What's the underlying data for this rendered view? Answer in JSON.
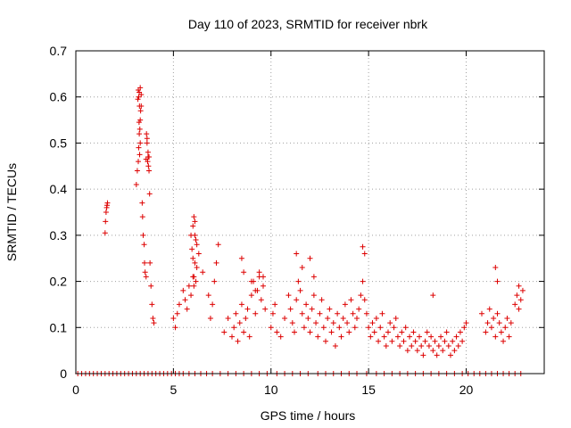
{
  "chart_data": {
    "type": "scatter",
    "title": "Day 110 of 2023, SRMTID for receiver nbrk",
    "xlabel": "GPS time / hours",
    "ylabel": "SRMTID / TECUs",
    "xlim": [
      0,
      24
    ],
    "ylim": [
      0,
      0.7
    ],
    "xticks": [
      0,
      5,
      10,
      15,
      20
    ],
    "yticks": [
      0,
      0.1,
      0.2,
      0.3,
      0.4,
      0.5,
      0.6,
      0.7
    ],
    "xtick_labels": [
      "0",
      "5",
      "10",
      "15",
      "20"
    ],
    "ytick_labels": [
      "0",
      "0.1",
      "0.2",
      "0.3",
      "0.4",
      "0.5",
      "0.6",
      "0.7"
    ],
    "grid": true,
    "marker": "+",
    "color": "#dd0000",
    "series": [
      {
        "name": "SRMTID",
        "x": [
          0.1,
          0.3,
          0.5,
          0.7,
          0.9,
          1.1,
          1.3,
          1.5,
          1.7,
          1.9,
          2.1,
          2.3,
          2.5,
          2.7,
          2.9,
          3.1,
          3.3,
          3.5,
          3.7,
          3.9,
          4.1,
          4.3,
          4.5,
          4.7,
          4.9,
          5.1,
          5.3,
          5.5,
          5.8,
          6.1,
          6.4,
          6.7,
          7.0,
          7.4,
          7.8,
          8.2,
          8.6,
          9.0,
          9.4,
          9.8,
          10.3,
          10.7,
          11.1,
          11.5,
          11.9,
          12.4,
          12.8,
          13.2,
          13.6,
          14.0,
          14.4,
          14.9,
          15.4,
          15.8,
          16.2,
          16.6,
          17.0,
          17.4,
          17.8,
          18.2,
          18.6,
          19.0,
          19.4,
          19.8,
          20.1,
          20.4,
          20.7,
          21.0,
          21.3,
          21.6,
          21.9,
          22.2,
          22.5,
          22.8,
          1.5,
          1.52,
          1.55,
          1.58,
          1.6,
          1.62,
          3.1,
          3.15,
          3.2,
          3.22,
          3.25,
          3.28,
          3.3,
          3.32,
          3.35,
          3.4,
          3.42,
          3.45,
          3.5,
          3.52,
          3.55,
          3.6,
          3.65,
          3.7,
          3.72,
          3.75,
          3.78,
          3.8,
          3.85,
          3.9,
          3.95,
          4.0,
          5.0,
          5.1,
          5.2,
          5.3,
          5.5,
          5.6,
          5.7,
          5.8,
          5.9,
          6.0,
          6.05,
          6.1,
          6.15,
          6.2,
          6.3,
          6.5,
          6.8,
          6.9,
          7.0,
          7.1,
          7.2,
          7.3,
          7.6,
          7.8,
          8.0,
          8.1,
          8.2,
          8.3,
          8.4,
          8.5,
          8.6,
          8.7,
          8.8,
          8.9,
          9.0,
          9.1,
          9.2,
          9.3,
          9.4,
          9.5,
          9.6,
          9.7,
          10.0,
          10.1,
          10.2,
          10.3,
          10.5,
          10.7,
          10.9,
          11.0,
          11.1,
          11.2,
          11.3,
          11.4,
          11.5,
          11.6,
          11.7,
          11.8,
          11.9,
          12.0,
          12.1,
          12.2,
          12.3,
          12.4,
          12.5,
          12.6,
          12.7,
          12.8,
          12.9,
          13.0,
          13.1,
          13.2,
          13.3,
          13.4,
          13.5,
          13.6,
          13.7,
          13.8,
          13.9,
          14.0,
          14.1,
          14.2,
          14.3,
          14.4,
          14.5,
          14.6,
          14.7,
          14.8,
          14.9,
          15.0,
          15.1,
          15.2,
          15.3,
          15.4,
          15.5,
          15.6,
          15.7,
          15.8,
          15.9,
          16.0,
          16.1,
          16.2,
          16.3,
          16.4,
          16.5,
          16.6,
          16.7,
          16.8,
          16.9,
          17.0,
          17.1,
          17.2,
          17.3,
          17.4,
          17.5,
          17.6,
          17.7,
          17.8,
          17.9,
          18.0,
          18.1,
          18.2,
          18.3,
          18.4,
          18.5,
          18.6,
          18.7,
          18.8,
          18.9,
          19.0,
          19.1,
          19.2,
          19.3,
          19.4,
          19.5,
          19.6,
          19.7,
          19.8,
          19.9,
          20.0,
          20.8,
          21.0,
          21.1,
          21.2,
          21.3,
          21.4,
          21.5,
          21.6,
          21.7,
          21.8,
          21.9,
          22.0,
          22.1,
          22.2,
          22.3,
          22.5,
          22.6,
          22.7,
          22.8,
          22.9,
          3.22,
          3.25,
          3.3,
          3.2,
          3.35,
          3.18,
          3.26,
          3.24,
          3.3,
          3.27,
          3.62,
          3.65,
          3.7,
          3.68,
          3.6,
          3.75,
          5.9,
          6.0,
          6.05,
          6.1,
          6.15,
          6.2,
          5.95,
          6.0,
          6.05,
          6.1,
          8.5,
          8.6,
          9.0,
          9.2,
          9.4,
          9.6,
          11.3,
          11.6,
          12.0,
          12.2,
          14.7,
          14.8,
          18.3,
          21.5,
          21.6,
          22.7
        ],
        "y": [
          0,
          0,
          0,
          0,
          0,
          0,
          0,
          0,
          0,
          0,
          0,
          0,
          0,
          0,
          0,
          0,
          0,
          0,
          0,
          0,
          0,
          0,
          0,
          0,
          0,
          0,
          0,
          0,
          0,
          0,
          0,
          0,
          0,
          0,
          0,
          0,
          0,
          0,
          0,
          0,
          0,
          0,
          0,
          0,
          0,
          0,
          0,
          0,
          0,
          0,
          0,
          0,
          0,
          0,
          0,
          0,
          0,
          0,
          0,
          0,
          0,
          0,
          0,
          0,
          0,
          0,
          0,
          0,
          0,
          0,
          0,
          0,
          0,
          0,
          0.305,
          0.33,
          0.35,
          0.36,
          0.365,
          0.37,
          0.41,
          0.44,
          0.46,
          0.49,
          0.52,
          0.53,
          0.55,
          0.57,
          0.58,
          0.37,
          0.34,
          0.3,
          0.28,
          0.24,
          0.22,
          0.21,
          0.5,
          0.47,
          0.45,
          0.44,
          0.39,
          0.24,
          0.19,
          0.15,
          0.12,
          0.11,
          0.12,
          0.1,
          0.13,
          0.15,
          0.18,
          0.16,
          0.14,
          0.19,
          0.17,
          0.21,
          0.19,
          0.24,
          0.2,
          0.23,
          0.26,
          0.22,
          0.17,
          0.12,
          0.15,
          0.2,
          0.24,
          0.28,
          0.09,
          0.12,
          0.08,
          0.1,
          0.13,
          0.07,
          0.11,
          0.15,
          0.09,
          0.12,
          0.14,
          0.08,
          0.17,
          0.2,
          0.13,
          0.18,
          0.21,
          0.16,
          0.19,
          0.14,
          0.1,
          0.13,
          0.15,
          0.09,
          0.08,
          0.12,
          0.17,
          0.14,
          0.11,
          0.09,
          0.16,
          0.2,
          0.18,
          0.13,
          0.1,
          0.15,
          0.12,
          0.09,
          0.14,
          0.17,
          0.11,
          0.08,
          0.13,
          0.16,
          0.1,
          0.07,
          0.12,
          0.14,
          0.09,
          0.11,
          0.06,
          0.13,
          0.1,
          0.08,
          0.12,
          0.15,
          0.11,
          0.09,
          0.16,
          0.13,
          0.1,
          0.12,
          0.14,
          0.17,
          0.2,
          0.16,
          0.13,
          0.1,
          0.08,
          0.11,
          0.09,
          0.12,
          0.07,
          0.1,
          0.13,
          0.08,
          0.06,
          0.09,
          0.11,
          0.07,
          0.1,
          0.12,
          0.08,
          0.06,
          0.09,
          0.07,
          0.1,
          0.05,
          0.08,
          0.06,
          0.09,
          0.07,
          0.05,
          0.08,
          0.06,
          0.04,
          0.07,
          0.09,
          0.06,
          0.08,
          0.05,
          0.07,
          0.04,
          0.06,
          0.08,
          0.05,
          0.07,
          0.09,
          0.06,
          0.04,
          0.07,
          0.05,
          0.08,
          0.06,
          0.09,
          0.07,
          0.1,
          0.11,
          0.13,
          0.09,
          0.11,
          0.14,
          0.1,
          0.12,
          0.08,
          0.13,
          0.11,
          0.09,
          0.07,
          0.1,
          0.12,
          0.08,
          0.11,
          0.15,
          0.17,
          0.14,
          0.16,
          0.18,
          0.6,
          0.61,
          0.62,
          0.615,
          0.605,
          0.595,
          0.58,
          0.545,
          0.5,
          0.475,
          0.52,
          0.51,
          0.48,
          0.46,
          0.465,
          0.47,
          0.3,
          0.32,
          0.34,
          0.33,
          0.29,
          0.28,
          0.27,
          0.25,
          0.21,
          0.3,
          0.25,
          0.22,
          0.2,
          0.18,
          0.22,
          0.21,
          0.26,
          0.23,
          0.25,
          0.21,
          0.275,
          0.26,
          0.17,
          0.23,
          0.2,
          0.19
        ]
      }
    ]
  }
}
